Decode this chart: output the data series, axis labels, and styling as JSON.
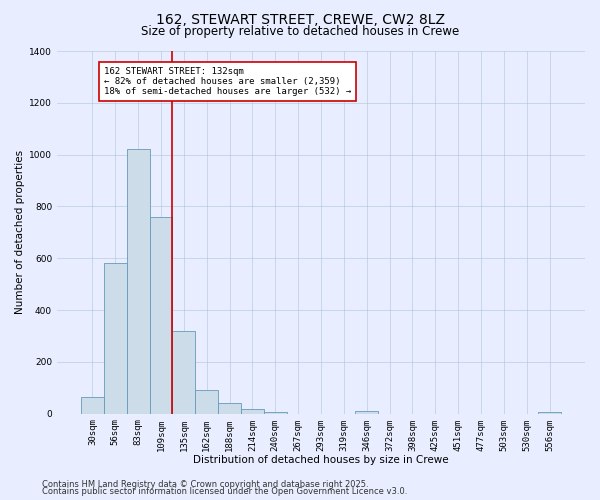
{
  "title": "162, STEWART STREET, CREWE, CW2 8LZ",
  "subtitle": "Size of property relative to detached houses in Crewe",
  "xlabel": "Distribution of detached houses by size in Crewe",
  "ylabel": "Number of detached properties",
  "bar_labels": [
    "30sqm",
    "56sqm",
    "83sqm",
    "109sqm",
    "135sqm",
    "162sqm",
    "188sqm",
    "214sqm",
    "240sqm",
    "267sqm",
    "293sqm",
    "319sqm",
    "346sqm",
    "372sqm",
    "398sqm",
    "425sqm",
    "451sqm",
    "477sqm",
    "503sqm",
    "530sqm",
    "556sqm"
  ],
  "bar_values": [
    65,
    580,
    1020,
    760,
    320,
    90,
    40,
    20,
    5,
    0,
    0,
    0,
    10,
    0,
    0,
    0,
    0,
    0,
    0,
    0,
    5
  ],
  "bar_color": "#ccdce8",
  "bar_edge_color": "#6699bb",
  "ylim": [
    0,
    1400
  ],
  "yticks": [
    0,
    200,
    400,
    600,
    800,
    1000,
    1200,
    1400
  ],
  "vline_x_index": 4,
  "vline_color": "#cc0000",
  "annotation_title": "162 STEWART STREET: 132sqm",
  "annotation_line1": "← 82% of detached houses are smaller (2,359)",
  "annotation_line2": "18% of semi-detached houses are larger (532) →",
  "annotation_box_color": "#ffffff",
  "annotation_box_edge": "#cc0000",
  "footer1": "Contains HM Land Registry data © Crown copyright and database right 2025.",
  "footer2": "Contains public sector information licensed under the Open Government Licence v3.0.",
  "bg_color": "#e8eeff",
  "plot_bg_color": "#e8eeff",
  "title_fontsize": 10,
  "subtitle_fontsize": 8.5,
  "axis_label_fontsize": 7.5,
  "tick_fontsize": 6.5,
  "footer_fontsize": 6
}
